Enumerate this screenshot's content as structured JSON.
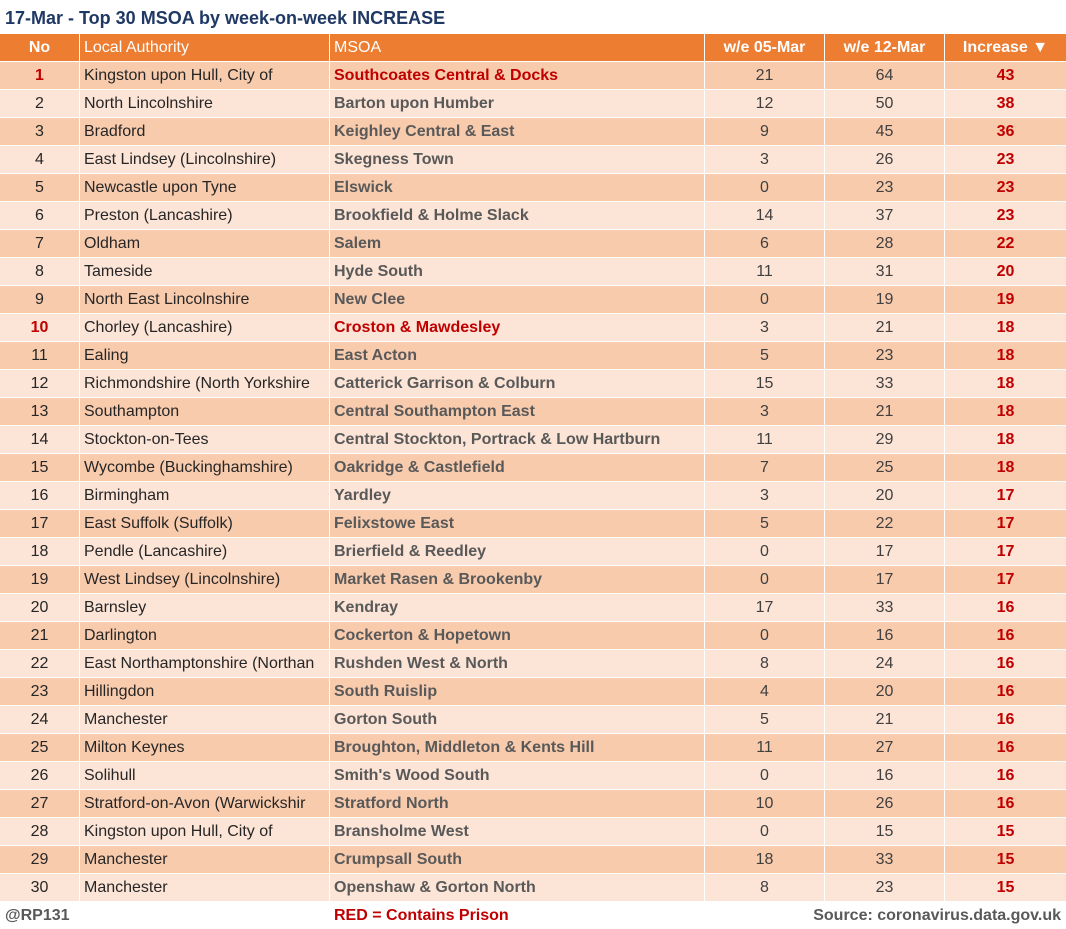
{
  "title": "17-Mar - Top 30 MSOA by week-on-week INCREASE",
  "table": {
    "headers": [
      "No",
      "Local Authority",
      "MSOA",
      "w/e 05-Mar",
      "w/e 12-Mar",
      "Increase ▼"
    ],
    "rows": [
      {
        "no": 1,
        "authority": "Kingston upon Hull, City of",
        "msoa": "Southcoates Central & Docks",
        "prev": 21,
        "curr": 64,
        "increase": 43,
        "prison": true
      },
      {
        "no": 2,
        "authority": "North Lincolnshire",
        "msoa": "Barton upon Humber",
        "prev": 12,
        "curr": 50,
        "increase": 38
      },
      {
        "no": 3,
        "authority": "Bradford",
        "msoa": "Keighley Central & East",
        "prev": 9,
        "curr": 45,
        "increase": 36
      },
      {
        "no": 4,
        "authority": "East Lindsey (Lincolnshire)",
        "msoa": "Skegness Town",
        "prev": 3,
        "curr": 26,
        "increase": 23
      },
      {
        "no": 5,
        "authority": "Newcastle upon Tyne",
        "msoa": "Elswick",
        "prev": 0,
        "curr": 23,
        "increase": 23
      },
      {
        "no": 6,
        "authority": "Preston (Lancashire)",
        "msoa": "Brookfield & Holme Slack",
        "prev": 14,
        "curr": 37,
        "increase": 23
      },
      {
        "no": 7,
        "authority": "Oldham",
        "msoa": "Salem",
        "prev": 6,
        "curr": 28,
        "increase": 22
      },
      {
        "no": 8,
        "authority": "Tameside",
        "msoa": "Hyde South",
        "prev": 11,
        "curr": 31,
        "increase": 20
      },
      {
        "no": 9,
        "authority": "North East Lincolnshire",
        "msoa": "New Clee",
        "prev": 0,
        "curr": 19,
        "increase": 19
      },
      {
        "no": 10,
        "authority": "Chorley (Lancashire)",
        "msoa": "Croston & Mawdesley",
        "prev": 3,
        "curr": 21,
        "increase": 18,
        "prison": true
      },
      {
        "no": 11,
        "authority": "Ealing",
        "msoa": "East Acton",
        "prev": 5,
        "curr": 23,
        "increase": 18
      },
      {
        "no": 12,
        "authority": "Richmondshire (North Yorkshire",
        "msoa": "Catterick Garrison & Colburn",
        "prev": 15,
        "curr": 33,
        "increase": 18
      },
      {
        "no": 13,
        "authority": "Southampton",
        "msoa": "Central Southampton East",
        "prev": 3,
        "curr": 21,
        "increase": 18
      },
      {
        "no": 14,
        "authority": "Stockton-on-Tees",
        "msoa": "Central Stockton, Portrack & Low Hartburn",
        "prev": 11,
        "curr": 29,
        "increase": 18
      },
      {
        "no": 15,
        "authority": "Wycombe (Buckinghamshire)",
        "msoa": "Oakridge & Castlefield",
        "prev": 7,
        "curr": 25,
        "increase": 18
      },
      {
        "no": 16,
        "authority": "Birmingham",
        "msoa": "Yardley",
        "prev": 3,
        "curr": 20,
        "increase": 17
      },
      {
        "no": 17,
        "authority": "East Suffolk (Suffolk)",
        "msoa": "Felixstowe East",
        "prev": 5,
        "curr": 22,
        "increase": 17
      },
      {
        "no": 18,
        "authority": "Pendle (Lancashire)",
        "msoa": "Brierfield & Reedley",
        "prev": 0,
        "curr": 17,
        "increase": 17
      },
      {
        "no": 19,
        "authority": "West Lindsey (Lincolnshire)",
        "msoa": "Market Rasen & Brookenby",
        "prev": 0,
        "curr": 17,
        "increase": 17
      },
      {
        "no": 20,
        "authority": "Barnsley",
        "msoa": "Kendray",
        "prev": 17,
        "curr": 33,
        "increase": 16
      },
      {
        "no": 21,
        "authority": "Darlington",
        "msoa": "Cockerton & Hopetown",
        "prev": 0,
        "curr": 16,
        "increase": 16
      },
      {
        "no": 22,
        "authority": "East Northamptonshire (Northan",
        "msoa": "Rushden West & North",
        "prev": 8,
        "curr": 24,
        "increase": 16
      },
      {
        "no": 23,
        "authority": "Hillingdon",
        "msoa": "South Ruislip",
        "prev": 4,
        "curr": 20,
        "increase": 16
      },
      {
        "no": 24,
        "authority": "Manchester",
        "msoa": "Gorton South",
        "prev": 5,
        "curr": 21,
        "increase": 16
      },
      {
        "no": 25,
        "authority": "Milton Keynes",
        "msoa": "Broughton, Middleton & Kents Hill",
        "prev": 11,
        "curr": 27,
        "increase": 16
      },
      {
        "no": 26,
        "authority": "Solihull",
        "msoa": "Smith's Wood South",
        "prev": 0,
        "curr": 16,
        "increase": 16
      },
      {
        "no": 27,
        "authority": "Stratford-on-Avon (Warwickshir",
        "msoa": "Stratford North",
        "prev": 10,
        "curr": 26,
        "increase": 16
      },
      {
        "no": 28,
        "authority": "Kingston upon Hull, City of",
        "msoa": "Bransholme West",
        "prev": 0,
        "curr": 15,
        "increase": 15
      },
      {
        "no": 29,
        "authority": "Manchester",
        "msoa": "Crumpsall South",
        "prev": 18,
        "curr": 33,
        "increase": 15
      },
      {
        "no": 30,
        "authority": "Manchester",
        "msoa": "Openshaw & Gorton North",
        "prev": 8,
        "curr": 23,
        "increase": 15
      }
    ]
  },
  "footer": {
    "credit": "@RP131",
    "legend": "RED = Contains Prison",
    "source": "Source: coronavirus.data.gov.uk"
  }
}
